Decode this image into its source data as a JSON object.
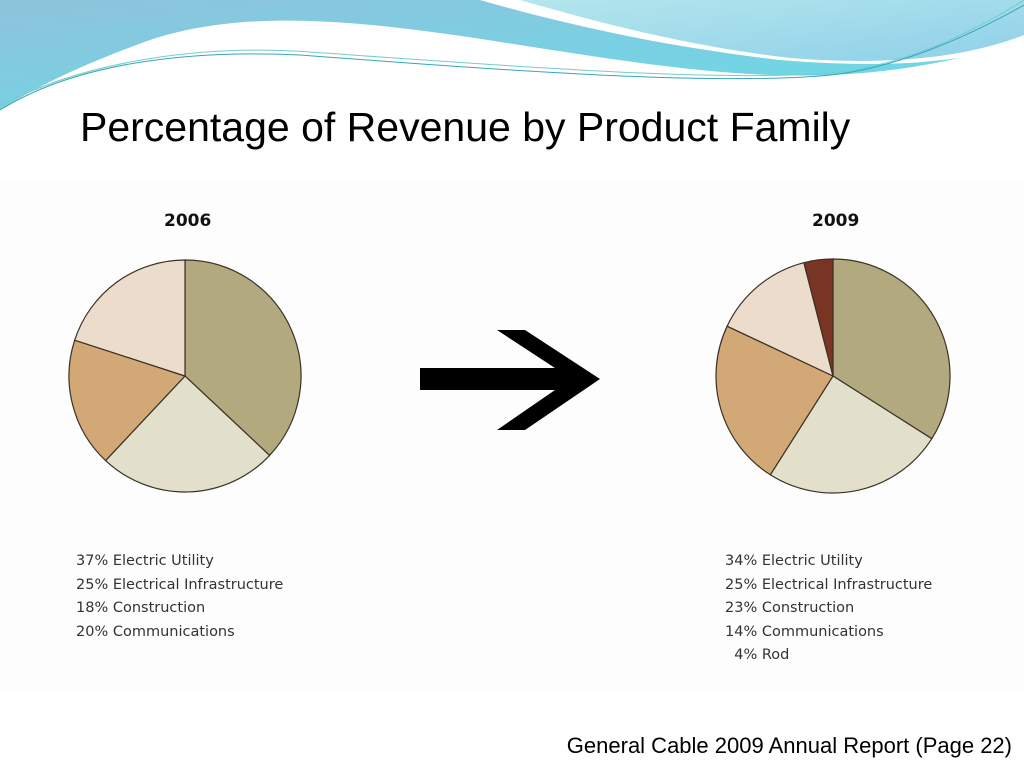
{
  "slide": {
    "title": "Percentage of Revenue by Product Family",
    "footer": "General Cable 2009 Annual Report (Page 22)"
  },
  "colors": {
    "Electric Utility": "#b3a97f",
    "Electrical Infrastructure": "#e2dfcb",
    "Construction": "#d2a877",
    "Communications": "#ecdccb",
    "Rod": "#7a3424"
  },
  "chart_data": [
    {
      "type": "pie",
      "title": "2006",
      "categories": [
        "Electric Utility",
        "Electrical Infrastructure",
        "Construction",
        "Communications"
      ],
      "values": [
        37,
        25,
        18,
        20
      ],
      "legend_labels": [
        "37% Electric Utility",
        "25% Electrical Infrastructure",
        "18% Construction",
        "20% Communications"
      ],
      "legend_placement": "bottom"
    },
    {
      "type": "pie",
      "title": "2009",
      "categories": [
        "Electric Utility",
        "Electrical Infrastructure",
        "Construction",
        "Communications",
        "Rod"
      ],
      "values": [
        34,
        25,
        23,
        14,
        4
      ],
      "legend_labels": [
        "34% Electric Utility",
        "25% Electrical Infrastructure",
        "23% Construction",
        "14% Communications",
        "  4% Rod"
      ],
      "legend_placement": "bottom"
    }
  ]
}
